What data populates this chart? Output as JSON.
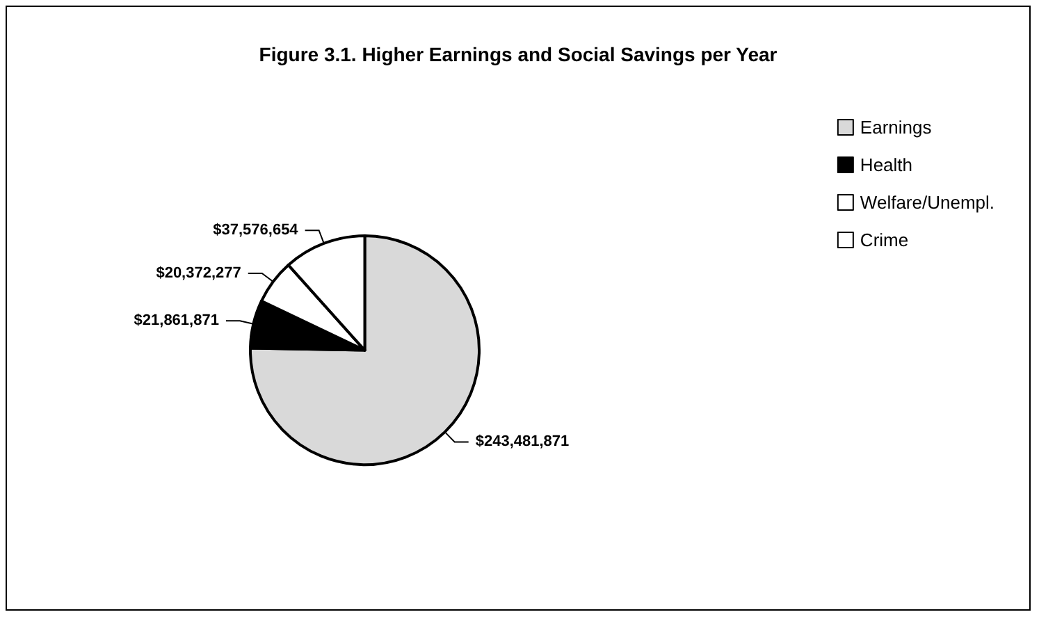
{
  "chart_data": {
    "type": "pie",
    "title": "Figure 3.1. Higher Earnings and Social Savings per Year",
    "categories": [
      "Earnings",
      "Health",
      "Welfare/Unempl.",
      "Crime"
    ],
    "values": [
      243481871,
      21861871,
      20372277,
      37576654
    ],
    "colors": [
      "#d9d9d9",
      "#000000",
      "#ffffff",
      "#ffffff"
    ],
    "value_labels": [
      "$243,481,871",
      "$21,861,871",
      "$20,372,277",
      "$37,576,654"
    ],
    "legend": "right"
  }
}
